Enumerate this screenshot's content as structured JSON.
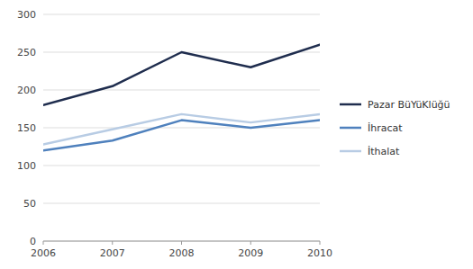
{
  "chart_data": {
    "type": "line",
    "x": [
      2006,
      2007,
      2008,
      2009,
      2010
    ],
    "xlim": [
      2006,
      2010
    ],
    "xticks": [
      2006,
      2007,
      2008,
      2009,
      2010
    ],
    "series": [
      {
        "name": "Pazar BüYüKlüğü",
        "color": "#1f2d4e",
        "values": [
          180,
          205,
          250,
          230,
          260
        ]
      },
      {
        "name": "İhracat",
        "color": "#4f81bd",
        "values": [
          120,
          133,
          160,
          150,
          160
        ]
      },
      {
        "name": "İthalat",
        "color": "#b8cce4",
        "values": [
          128,
          148,
          168,
          157,
          168
        ]
      }
    ],
    "ylim": [
      0,
      300
    ],
    "yticks": [
      0,
      50,
      100,
      150,
      200,
      250,
      300
    ],
    "grid": true,
    "legend": "right"
  }
}
